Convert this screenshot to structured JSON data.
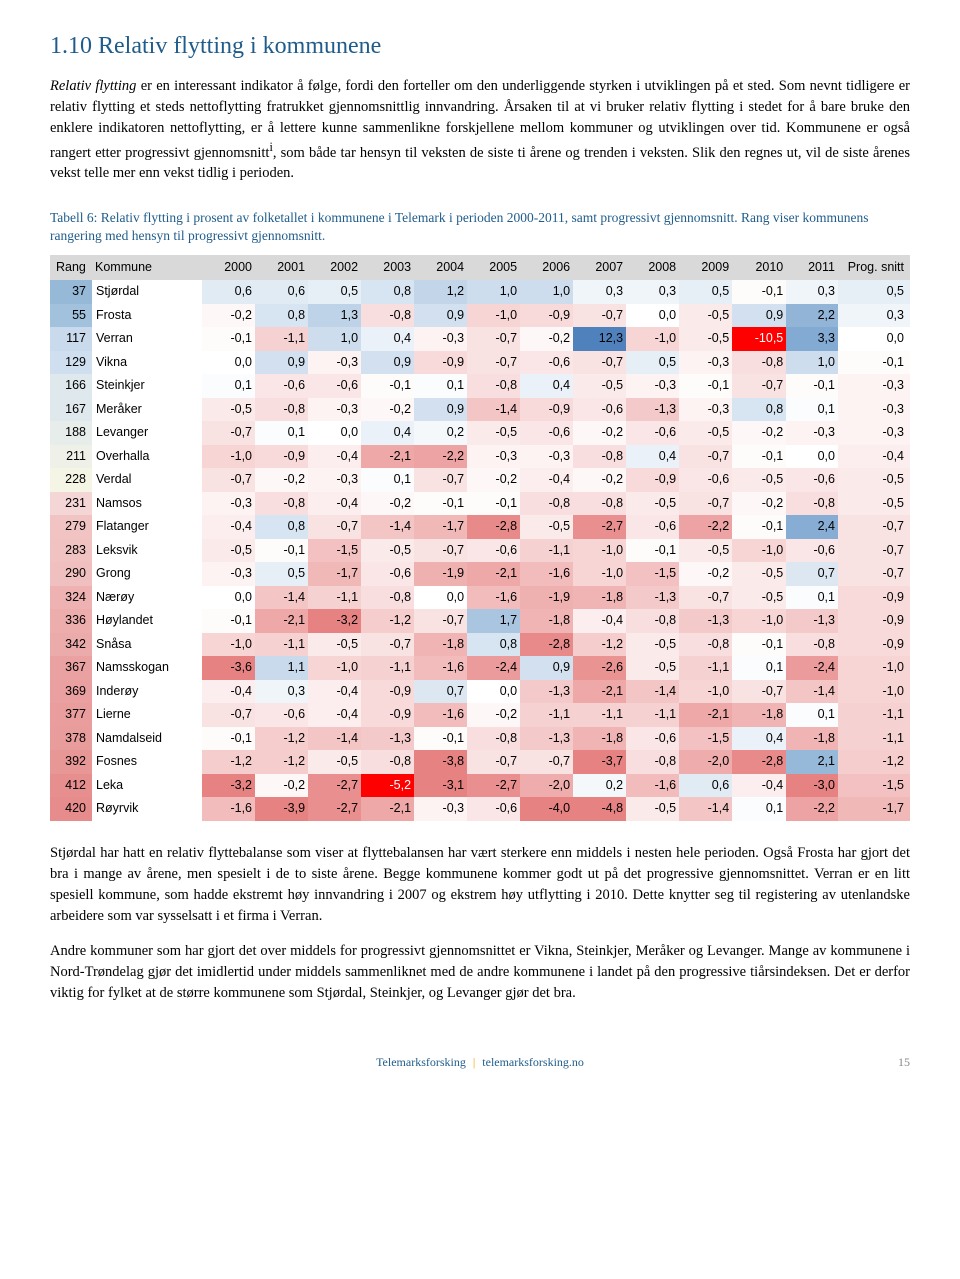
{
  "heading": "1.10 Relativ flytting i kommunene",
  "intro_html": "<span class='italic'>Relativ flytting</span> er en interessant indikator å følge, fordi den forteller om den underliggende styrken i utviklingen på et sted. Som nevnt tidligere er relativ flytting et steds nettoflytting fratrukket gjennomsnittlig innvandring. Årsaken til at vi bruker relativ flytting i stedet for å bare bruke den enklere indikatoren nettoflytting, er å lettere kunne sammenlikne forskjellene mellom kommuner og utviklingen over tid. Kommunene er også rangert etter progressivt gjennomsnitt<sup>i</sup>, som både tar hensyn til veksten de siste ti årene og trenden i veksten. Slik den regnes ut, vil de siste årenes vekst telle mer enn vekst tidlig i perioden.",
  "table_caption": "Tabell 6: Relativ flytting i prosent av folketallet i kommunene i Telemark i perioden 2000-2011, samt progressivt gjennomsnitt. Rang viser kommunens rangering med hensyn til progressivt gjennomsnitt.",
  "columns": [
    "Rang",
    "Kommune",
    "2000",
    "2001",
    "2002",
    "2003",
    "2004",
    "2005",
    "2006",
    "2007",
    "2008",
    "2009",
    "2010",
    "2011",
    "Prog. snitt"
  ],
  "colors": {
    "header_bg": "#d9d9d9",
    "rang_palette_note": "per-row computed",
    "cell_bg_note": "per-cell computed"
  },
  "rows": [
    {
      "rang": 37,
      "kommune": "Stjørdal",
      "vals": [
        "0,6",
        "0,6",
        "0,5",
        "0,8",
        "1,2",
        "1,0",
        "1,0",
        "0,3",
        "0,3",
        "0,5",
        "-0,1",
        "0,3"
      ],
      "prog": "0,5"
    },
    {
      "rang": 55,
      "kommune": "Frosta",
      "vals": [
        "-0,2",
        "0,8",
        "1,3",
        "-0,8",
        "0,9",
        "-1,0",
        "-0,9",
        "-0,7",
        "0,0",
        "-0,5",
        "0,9",
        "2,2"
      ],
      "prog": "0,3"
    },
    {
      "rang": 117,
      "kommune": "Verran",
      "vals": [
        "-0,1",
        "-1,1",
        "1,0",
        "0,4",
        "-0,3",
        "-0,7",
        "-0,2",
        "12,3",
        "-1,0",
        "-0,5",
        "-10,5",
        "3,3"
      ],
      "prog": "0,0"
    },
    {
      "rang": 129,
      "kommune": "Vikna",
      "vals": [
        "0,0",
        "0,9",
        "-0,3",
        "0,9",
        "-0,9",
        "-0,7",
        "-0,6",
        "-0,7",
        "0,5",
        "-0,3",
        "-0,8",
        "1,0"
      ],
      "prog": "-0,1"
    },
    {
      "rang": 166,
      "kommune": "Steinkjer",
      "vals": [
        "0,1",
        "-0,6",
        "-0,6",
        "-0,1",
        "0,1",
        "-0,8",
        "0,4",
        "-0,5",
        "-0,3",
        "-0,1",
        "-0,7",
        "-0,1"
      ],
      "prog": "-0,3"
    },
    {
      "rang": 167,
      "kommune": "Meråker",
      "vals": [
        "-0,5",
        "-0,8",
        "-0,3",
        "-0,2",
        "0,9",
        "-1,4",
        "-0,9",
        "-0,6",
        "-1,3",
        "-0,3",
        "0,8",
        "0,1"
      ],
      "prog": "-0,3"
    },
    {
      "rang": 188,
      "kommune": "Levanger",
      "vals": [
        "-0,7",
        "0,1",
        "0,0",
        "0,4",
        "0,2",
        "-0,5",
        "-0,6",
        "-0,2",
        "-0,6",
        "-0,5",
        "-0,2",
        "-0,3"
      ],
      "prog": "-0,3"
    },
    {
      "rang": 211,
      "kommune": "Overhalla",
      "vals": [
        "-1,0",
        "-0,9",
        "-0,4",
        "-2,1",
        "-2,2",
        "-0,3",
        "-0,3",
        "-0,8",
        "0,4",
        "-0,7",
        "-0,1",
        "0,0"
      ],
      "prog": "-0,4"
    },
    {
      "rang": 228,
      "kommune": "Verdal",
      "vals": [
        "-0,7",
        "-0,2",
        "-0,3",
        "0,1",
        "-0,7",
        "-0,2",
        "-0,4",
        "-0,2",
        "-0,9",
        "-0,6",
        "-0,5",
        "-0,6"
      ],
      "prog": "-0,5"
    },
    {
      "rang": 231,
      "kommune": "Namsos",
      "vals": [
        "-0,3",
        "-0,8",
        "-0,4",
        "-0,2",
        "-0,1",
        "-0,1",
        "-0,8",
        "-0,8",
        "-0,5",
        "-0,7",
        "-0,2",
        "-0,8"
      ],
      "prog": "-0,5"
    },
    {
      "rang": 279,
      "kommune": "Flatanger",
      "vals": [
        "-0,4",
        "0,8",
        "-0,7",
        "-1,4",
        "-1,7",
        "-2,8",
        "-0,5",
        "-2,7",
        "-0,6",
        "-2,2",
        "-0,1",
        "2,4"
      ],
      "prog": "-0,7"
    },
    {
      "rang": 283,
      "kommune": "Leksvik",
      "vals": [
        "-0,5",
        "-0,1",
        "-1,5",
        "-0,5",
        "-0,7",
        "-0,6",
        "-1,1",
        "-1,0",
        "-0,1",
        "-0,5",
        "-1,0",
        "-0,6"
      ],
      "prog": "-0,7"
    },
    {
      "rang": 290,
      "kommune": "Grong",
      "vals": [
        "-0,3",
        "0,5",
        "-1,7",
        "-0,6",
        "-1,9",
        "-2,1",
        "-1,6",
        "-1,0",
        "-1,5",
        "-0,2",
        "-0,5",
        "0,7"
      ],
      "prog": "-0,7"
    },
    {
      "rang": 324,
      "kommune": "Nærøy",
      "vals": [
        "0,0",
        "-1,4",
        "-1,1",
        "-0,8",
        "0,0",
        "-1,6",
        "-1,9",
        "-1,8",
        "-1,3",
        "-0,7",
        "-0,5",
        "0,1"
      ],
      "prog": "-0,9"
    },
    {
      "rang": 336,
      "kommune": "Høylandet",
      "vals": [
        "-0,1",
        "-2,1",
        "-3,2",
        "-1,2",
        "-0,7",
        "1,7",
        "-1,8",
        "-0,4",
        "-0,8",
        "-1,3",
        "-1,0",
        "-1,3"
      ],
      "prog": "-0,9"
    },
    {
      "rang": 342,
      "kommune": "Snåsa",
      "vals": [
        "-1,0",
        "-1,1",
        "-0,5",
        "-0,7",
        "-1,8",
        "0,8",
        "-2,8",
        "-1,2",
        "-0,5",
        "-0,8",
        "-0,1",
        "-0,8"
      ],
      "prog": "-0,9"
    },
    {
      "rang": 367,
      "kommune": "Namsskogan",
      "vals": [
        "-3,6",
        "1,1",
        "-1,0",
        "-1,1",
        "-1,6",
        "-2,4",
        "0,9",
        "-2,6",
        "-0,5",
        "-1,1",
        "0,1",
        "-2,4"
      ],
      "prog": "-1,0"
    },
    {
      "rang": 369,
      "kommune": "Inderøy",
      "vals": [
        "-0,4",
        "0,3",
        "-0,4",
        "-0,9",
        "0,7",
        "0,0",
        "-1,3",
        "-2,1",
        "-1,4",
        "-1,0",
        "-0,7",
        "-1,4"
      ],
      "prog": "-1,0"
    },
    {
      "rang": 377,
      "kommune": "Lierne",
      "vals": [
        "-0,7",
        "-0,6",
        "-0,4",
        "-0,9",
        "-1,6",
        "-0,2",
        "-1,1",
        "-1,1",
        "-1,1",
        "-2,1",
        "-1,8",
        "0,1"
      ],
      "prog": "-1,1"
    },
    {
      "rang": 378,
      "kommune": "Namdalseid",
      "vals": [
        "-0,1",
        "-1,2",
        "-1,4",
        "-1,3",
        "-0,1",
        "-0,8",
        "-1,3",
        "-1,8",
        "-0,6",
        "-1,5",
        "0,4",
        "-1,8"
      ],
      "prog": "-1,1"
    },
    {
      "rang": 392,
      "kommune": "Fosnes",
      "vals": [
        "-1,2",
        "-1,2",
        "-0,5",
        "-0,8",
        "-3,8",
        "-0,7",
        "-0,7",
        "-3,7",
        "-0,8",
        "-2,0",
        "-2,8",
        "2,1"
      ],
      "prog": "-1,2"
    },
    {
      "rang": 412,
      "kommune": "Leka",
      "vals": [
        "-3,2",
        "-0,2",
        "-2,7",
        "-5,2",
        "-3,1",
        "-2,7",
        "-2,0",
        "0,2",
        "-1,6",
        "0,6",
        "-0,4",
        "-3,0"
      ],
      "prog": "-1,5"
    },
    {
      "rang": 420,
      "kommune": "Røyrvik",
      "vals": [
        "-1,6",
        "-3,9",
        "-2,7",
        "-2,1",
        "-0,3",
        "-0,6",
        "-4,0",
        "-4,8",
        "-0,5",
        "-1,4",
        "0,1",
        "-2,2"
      ],
      "prog": "-1,7"
    }
  ],
  "para1": "Stjørdal har hatt en relativ flyttebalanse som viser at flyttebalansen har vært sterkere enn middels i nesten hele perioden. Også Frosta har gjort det bra i mange av årene, men spesielt i de to siste årene. Begge kommunene kommer godt ut på det progressive gjennomsnittet. Verran er en litt spesiell kommune, som hadde ekstremt høy innvandring i 2007 og ekstrem høy utflytting i 2010. Dette knytter seg til registering av utenlandske arbeidere som var sysselsatt i et firma i Verran.",
  "para2": "Andre kommuner som har gjort det over middels for progressivt gjennomsnittet er Vikna, Steinkjer, Meråker og Levanger. Mange av kommunene i Nord-Trøndelag gjør det imidlertid under middels sammenliknet med de andre kommunene i landet på den progressive tiårsindeksen. Det er derfor viktig for fylket at de større kommunene som Stjørdal, Steinkjer, og Levanger gjør det bra.",
  "footer_left": "Telemarksforsking",
  "footer_right": "telemarksforsking.no",
  "footer_page": "15"
}
